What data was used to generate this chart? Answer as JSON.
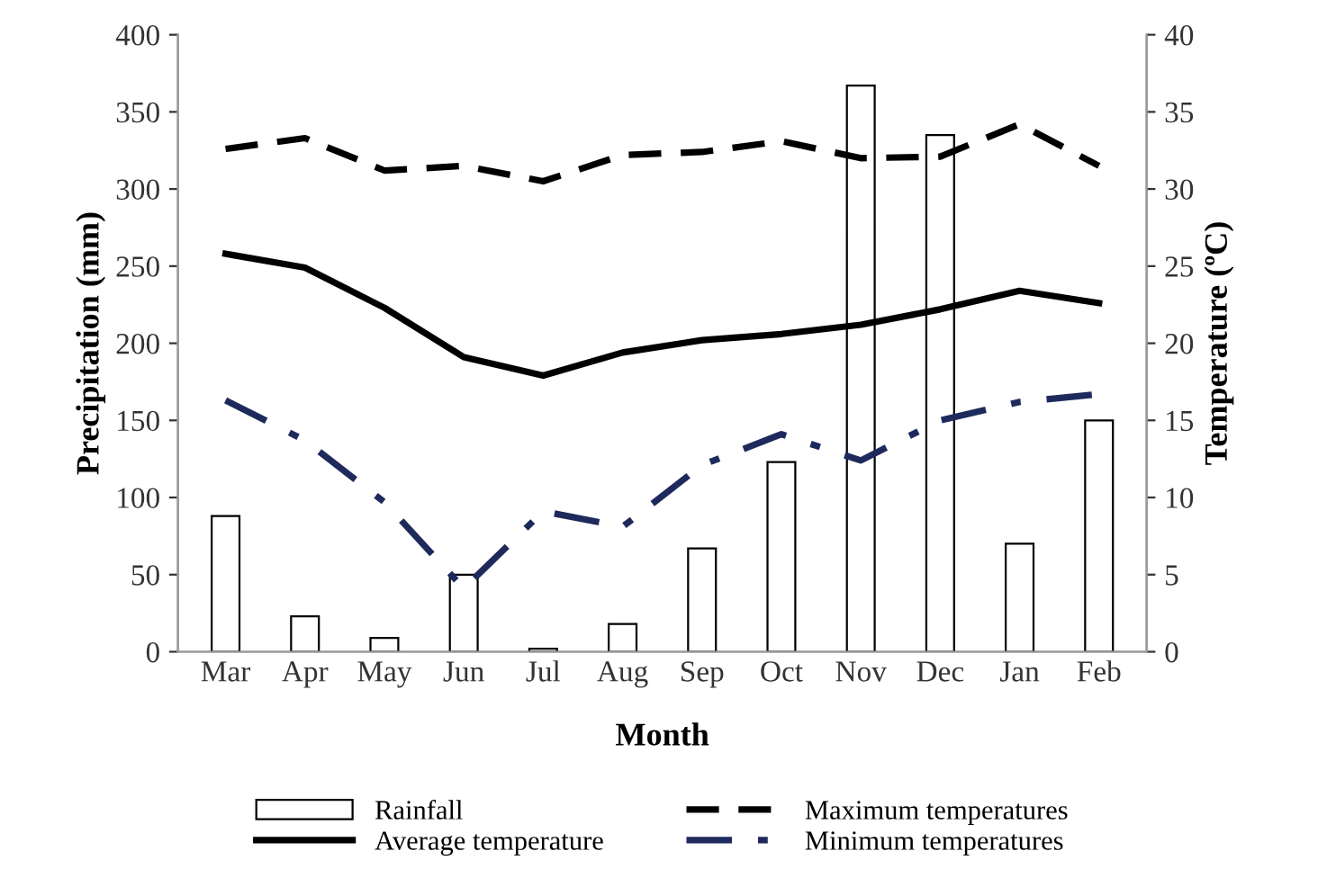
{
  "chart_data": {
    "type": "bar",
    "xlabel": "Month",
    "ylabel": "Precipitation (mm)",
    "y2label": "Temperature (ºC)",
    "categories": [
      "Mar",
      "Apr",
      "May",
      "Jun",
      "Jul",
      "Aug",
      "Sep",
      "Oct",
      "Nov",
      "Dec",
      "Jan",
      "Feb"
    ],
    "series": [
      {
        "name": "Rainfall",
        "color": "#ffffff",
        "values": [
          88,
          23,
          9,
          50,
          2,
          18,
          67,
          123,
          367,
          335,
          70,
          150
        ]
      },
      {
        "name": "Average temperature",
        "type": "line",
        "axis": "y2",
        "color": "#000000",
        "line_style": "solid",
        "values": [
          25.8,
          24.9,
          22.3,
          19.1,
          17.9,
          19.4,
          20.2,
          20.6,
          21.2,
          22.2,
          23.4,
          22.6
        ]
      },
      {
        "name": "Maximum temperatures",
        "type": "line",
        "axis": "y2",
        "color": "#000000",
        "line_style": "dashed",
        "values": [
          32.6,
          33.3,
          31.2,
          31.5,
          30.5,
          32.2,
          32.4,
          33.1,
          32.0,
          32.1,
          34.2,
          31.5
        ]
      },
      {
        "name": "Minimum temperatures",
        "type": "line",
        "axis": "y2",
        "color": "#1f2a5c",
        "line_style": "dashdot",
        "values": [
          16.3,
          13.7,
          9.7,
          4.1,
          9.1,
          8.1,
          12.1,
          14.1,
          12.4,
          15.0,
          16.2,
          16.7
        ]
      }
    ],
    "ylim": [
      0,
      400
    ],
    "yticks": [
      0,
      50,
      100,
      150,
      200,
      250,
      300,
      350,
      400
    ],
    "y2lim": [
      0,
      40
    ],
    "y2ticks": [
      0,
      5,
      10,
      15,
      20,
      25,
      30,
      35,
      40
    ],
    "legend": "bottom",
    "grid": false
  }
}
